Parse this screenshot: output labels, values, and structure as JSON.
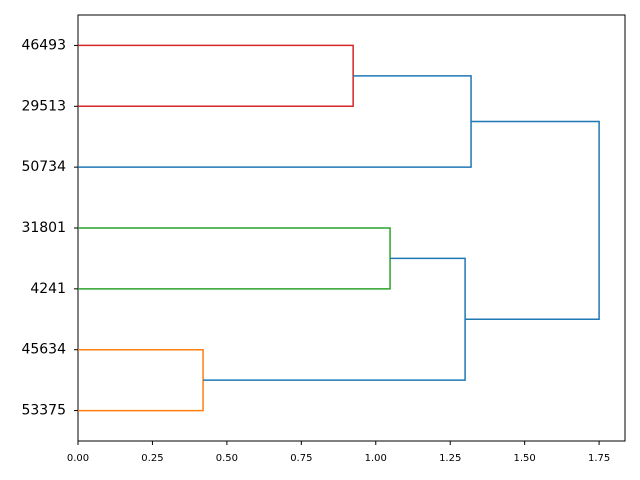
{
  "chart_data": {
    "type": "dendrogram",
    "orientation": "horizontal",
    "xlim": [
      0,
      1.837
    ],
    "xticks": [
      {
        "value": 0,
        "label": "0.00"
      },
      {
        "value": 0.25,
        "label": "0.25"
      },
      {
        "value": 0.5,
        "label": "0.50"
      },
      {
        "value": 0.75,
        "label": "0.75"
      },
      {
        "value": 1,
        "label": "1.00"
      },
      {
        "value": 1.25,
        "label": "1.25"
      },
      {
        "value": 1.5,
        "label": "1.50"
      },
      {
        "value": 1.75,
        "label": "1.75"
      }
    ],
    "tree": {
      "height": 1.75,
      "color": "#1f77b4",
      "children": [
        {
          "height": 1.32,
          "color": "#1f77b4",
          "children": [
            {
              "height": 0.924,
              "color": "#d62728",
              "children": [
                {
                  "label": "46493"
                },
                {
                  "label": "29513"
                }
              ]
            },
            {
              "label": "50734"
            }
          ]
        },
        {
          "height": 1.3,
          "color": "#1f77b4",
          "children": [
            {
              "height": 1.048,
              "color": "#2ca02c",
              "children": [
                {
                  "label": "31801"
                },
                {
                  "label": "4241"
                }
              ]
            },
            {
              "height": 0.42,
              "color": "#ff7f0e",
              "children": [
                {
                  "label": "45634"
                },
                {
                  "label": "53375"
                }
              ]
            }
          ]
        }
      ]
    }
  }
}
